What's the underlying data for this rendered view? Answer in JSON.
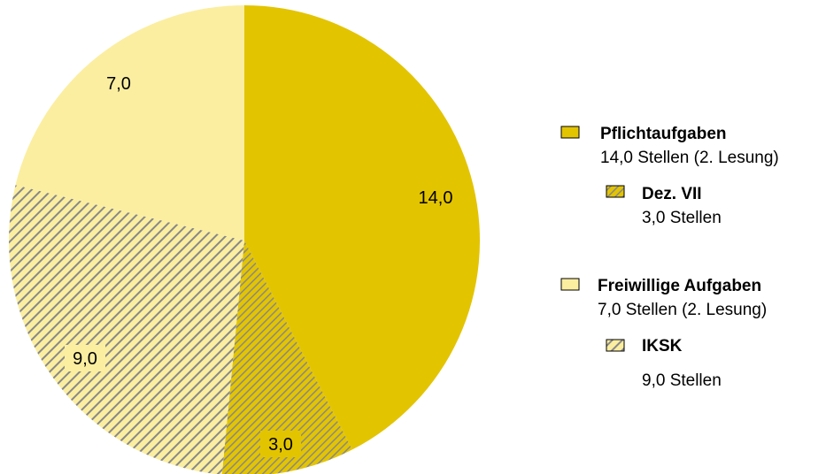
{
  "chart_data": {
    "type": "pie",
    "slices": [
      {
        "label": "14,0",
        "value": 14.0,
        "color": "#e3c400",
        "pattern": "solid"
      },
      {
        "label": "3,0",
        "value": 3.0,
        "color": "#e3c400",
        "pattern": "hatch"
      },
      {
        "label": "9,0",
        "value": 9.0,
        "color": "#fbeea0",
        "pattern": "hatch"
      },
      {
        "label": "7,0",
        "value": 7.0,
        "color": "#fbeea0",
        "pattern": "solid"
      }
    ],
    "start_angle_deg": 0,
    "direction": "clockwise",
    "legend_placement": "right",
    "legend": [
      {
        "title": "Pflichtaufgaben",
        "subtitle": "14,0 Stellen (2. Lesung)",
        "color": "#e3c400",
        "pattern": "solid"
      },
      {
        "title": "Dez. VII",
        "subtitle": "3,0 Stellen",
        "color": "#e3c400",
        "pattern": "hatch"
      },
      {
        "title": "Freiwillige Aufgaben",
        "subtitle": "7,0 Stellen (2. Lesung)",
        "color": "#fbeea0",
        "pattern": "solid"
      },
      {
        "title": "IKSK",
        "subtitle": "9,0 Stellen",
        "color": "#fbeea0",
        "pattern": "hatch"
      }
    ]
  }
}
